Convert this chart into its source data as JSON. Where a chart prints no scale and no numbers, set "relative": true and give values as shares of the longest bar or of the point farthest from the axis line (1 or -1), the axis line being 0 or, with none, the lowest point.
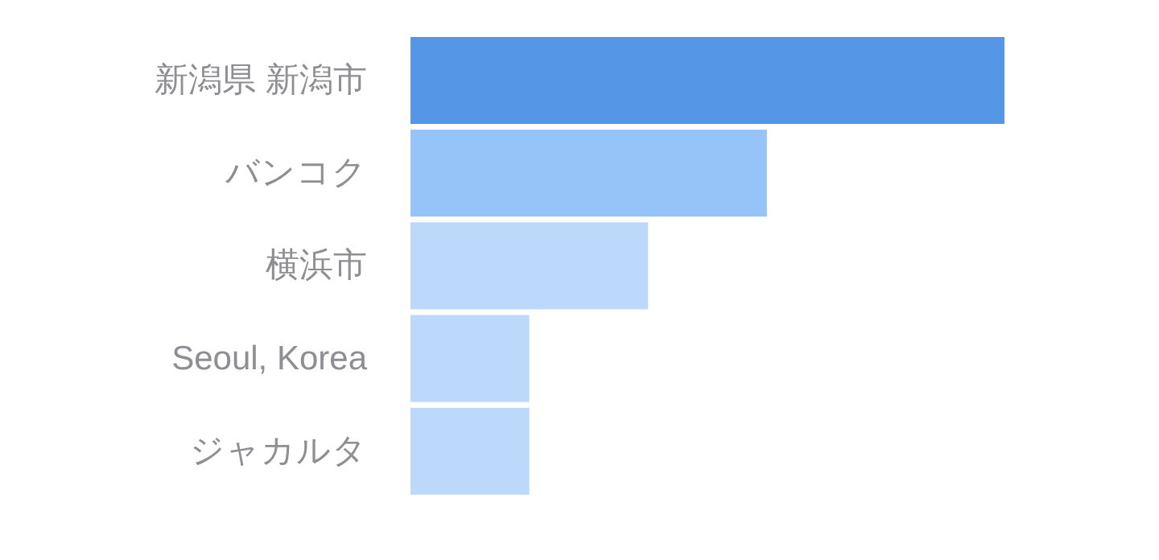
{
  "chart_data": {
    "type": "bar",
    "orientation": "horizontal",
    "relative": true,
    "categories": [
      "新潟県 新潟市",
      "バンコク",
      "横浜市",
      "Seoul, Korea",
      "ジャカルタ"
    ],
    "values": [
      1,
      0.6,
      0.4,
      0.2,
      0.2
    ],
    "colors": [
      "#5596e6",
      "#96c3f8",
      "#bcd8fa",
      "#bcd8fa",
      "#bcd8fa"
    ]
  }
}
